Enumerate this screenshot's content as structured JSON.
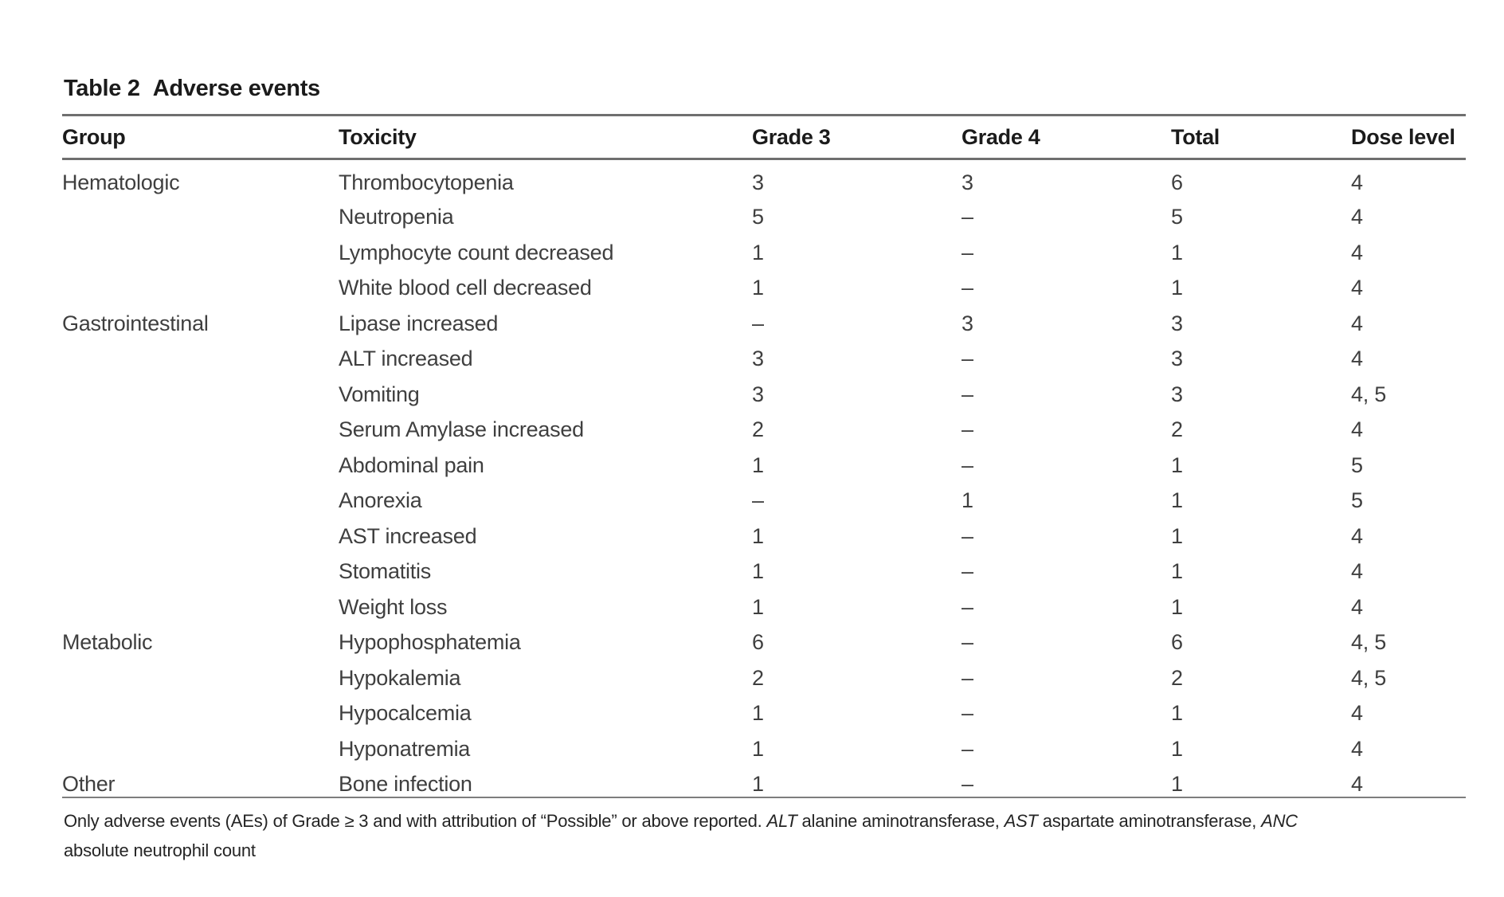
{
  "table": {
    "label": "Table 2",
    "title": "Adverse events",
    "columns": [
      "Group",
      "Toxicity",
      "Grade 3",
      "Grade 4",
      "Total",
      "Dose level"
    ],
    "rows": [
      {
        "group": "Hematologic",
        "toxicity": "Thrombocytopenia",
        "grade3": "3",
        "grade4": "3",
        "total": "6",
        "dose": "4"
      },
      {
        "group": "",
        "toxicity": "Neutropenia",
        "grade3": "5",
        "grade4": "–",
        "total": "5",
        "dose": "4"
      },
      {
        "group": "",
        "toxicity": "Lymphocyte count decreased",
        "grade3": "1",
        "grade4": "–",
        "total": "1",
        "dose": "4"
      },
      {
        "group": "",
        "toxicity": "White blood cell decreased",
        "grade3": "1",
        "grade4": "–",
        "total": "1",
        "dose": "4"
      },
      {
        "group": "Gastrointestinal",
        "toxicity": "Lipase increased",
        "grade3": "–",
        "grade4": "3",
        "total": "3",
        "dose": "4"
      },
      {
        "group": "",
        "toxicity": "ALT increased",
        "grade3": "3",
        "grade4": "–",
        "total": "3",
        "dose": "4"
      },
      {
        "group": "",
        "toxicity": "Vomiting",
        "grade3": "3",
        "grade4": "–",
        "total": "3",
        "dose": "4, 5"
      },
      {
        "group": "",
        "toxicity": "Serum Amylase increased",
        "grade3": "2",
        "grade4": "–",
        "total": "2",
        "dose": "4"
      },
      {
        "group": "",
        "toxicity": "Abdominal pain",
        "grade3": "1",
        "grade4": "–",
        "total": "1",
        "dose": "5"
      },
      {
        "group": "",
        "toxicity": "Anorexia",
        "grade3": "–",
        "grade4": "1",
        "total": "1",
        "dose": "5"
      },
      {
        "group": "",
        "toxicity": "AST increased",
        "grade3": "1",
        "grade4": "–",
        "total": "1",
        "dose": "4"
      },
      {
        "group": "",
        "toxicity": "Stomatitis",
        "grade3": "1",
        "grade4": "–",
        "total": "1",
        "dose": "4"
      },
      {
        "group": "",
        "toxicity": "Weight loss",
        "grade3": "1",
        "grade4": "–",
        "total": "1",
        "dose": "4"
      },
      {
        "group": "Metabolic",
        "toxicity": "Hypophosphatemia",
        "grade3": "6",
        "grade4": "–",
        "total": "6",
        "dose": "4, 5"
      },
      {
        "group": "",
        "toxicity": "Hypokalemia",
        "grade3": "2",
        "grade4": "–",
        "total": "2",
        "dose": "4, 5"
      },
      {
        "group": "",
        "toxicity": "Hypocalcemia",
        "grade3": "1",
        "grade4": "–",
        "total": "1",
        "dose": "4"
      },
      {
        "group": "",
        "toxicity": "Hyponatremia",
        "grade3": "1",
        "grade4": "–",
        "total": "1",
        "dose": "4"
      },
      {
        "group": "Other",
        "toxicity": "Bone infection",
        "grade3": "1",
        "grade4": "–",
        "total": "1",
        "dose": "4"
      }
    ],
    "footnote": {
      "line1": [
        {
          "t": "Only adverse events (AEs) of Grade ≥ 3 and with attribution of “Possible” or above reported. ",
          "i": false
        },
        {
          "t": "ALT",
          "i": true
        },
        {
          "t": " alanine aminotransferase, ",
          "i": false
        },
        {
          "t": "AST",
          "i": true
        },
        {
          "t": " aspartate aminotransferase, ",
          "i": false
        },
        {
          "t": "ANC",
          "i": true
        }
      ],
      "line2": "absolute neutrophil count"
    }
  },
  "colors": {
    "heading_text": "#1b1b1b",
    "body_text": "#3f3f3f",
    "rule_heavy": "#6f6f6f",
    "rule_light": "#7d7d7d",
    "background": "#ffffff"
  }
}
